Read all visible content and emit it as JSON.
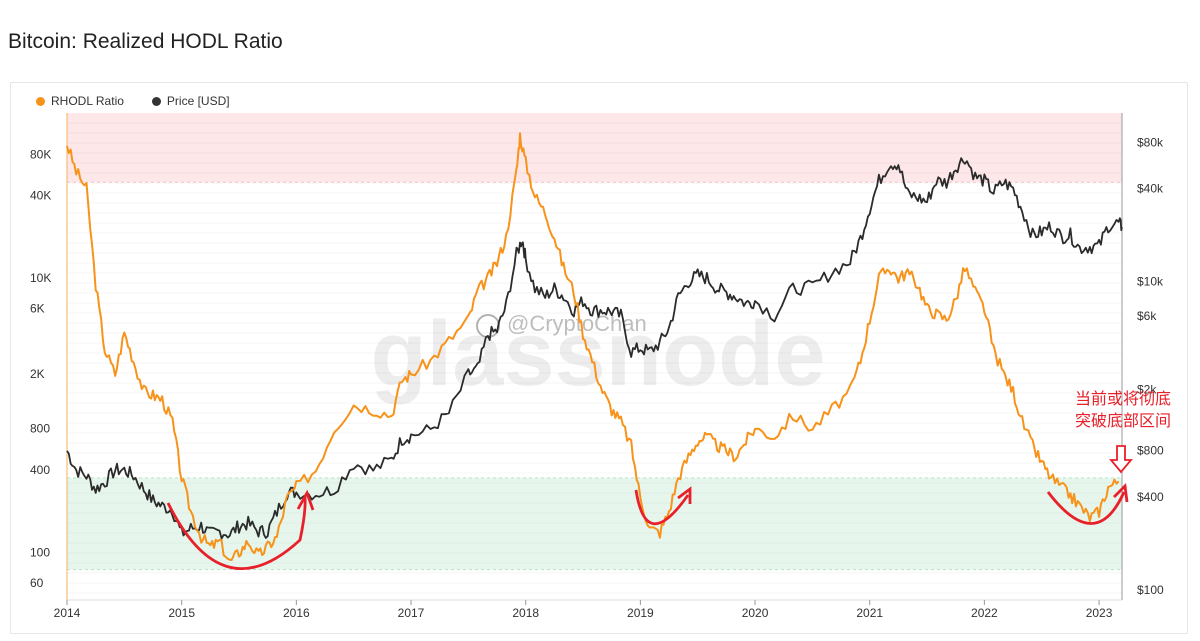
{
  "page": {
    "title": "Bitcoin: Realized HODL Ratio"
  },
  "legend": [
    {
      "label": "RHODL Ratio",
      "color": "#f7931a"
    },
    {
      "label": "Price [USD]",
      "color": "#333333"
    }
  ],
  "watermark": {
    "handle": "@CryptoChan",
    "brand": "glassnode"
  },
  "annotation": {
    "line1": "当前或将彻底",
    "line2": "突破底部区间"
  },
  "colors": {
    "rhodl": "#f7931a",
    "price": "#2b2b2b",
    "top_zone": "#fde7e9",
    "bottom_zone": "#e6f6ed",
    "annotation": "#e8202a"
  },
  "chart_data": {
    "type": "line",
    "title": "Bitcoin: Realized HODL Ratio",
    "x_ticks": [
      "2014",
      "2015",
      "2016",
      "2017",
      "2018",
      "2019",
      "2020",
      "2021",
      "2022",
      "2023"
    ],
    "y_left": {
      "scale": "log",
      "ticks": [
        "80K",
        "40K",
        "10K",
        "6K",
        "2K",
        "800",
        "400",
        "100",
        "60"
      ],
      "tick_values": [
        80000,
        40000,
        10000,
        6000,
        2000,
        800,
        400,
        100,
        60
      ]
    },
    "y_right": {
      "scale": "log",
      "ticks": [
        "$80k",
        "$40k",
        "$10k",
        "$6k",
        "$2k",
        "$800",
        "$400",
        "$100"
      ],
      "tick_values": [
        80000,
        40000,
        10000,
        6000,
        2000,
        800,
        400,
        100
      ]
    },
    "zones": [
      {
        "name": "top",
        "from": 50000,
        "to": 200000
      },
      {
        "name": "bottom",
        "from": 75,
        "to": 350
      }
    ],
    "series": [
      {
        "name": "RHODL Ratio",
        "axis": "left",
        "points": [
          [
            2014.0,
            95000
          ],
          [
            2014.08,
            60000
          ],
          [
            2014.17,
            45000
          ],
          [
            2014.25,
            9000
          ],
          [
            2014.33,
            3000
          ],
          [
            2014.42,
            2000
          ],
          [
            2014.5,
            4000
          ],
          [
            2014.58,
            2500
          ],
          [
            2014.67,
            1500
          ],
          [
            2014.75,
            1400
          ],
          [
            2014.83,
            1300
          ],
          [
            2014.92,
            900
          ],
          [
            2015.0,
            350
          ],
          [
            2015.08,
            200
          ],
          [
            2015.17,
            130
          ],
          [
            2015.25,
            110
          ],
          [
            2015.33,
            120
          ],
          [
            2015.42,
            85
          ],
          [
            2015.5,
            100
          ],
          [
            2015.58,
            120
          ],
          [
            2015.67,
            95
          ],
          [
            2015.75,
            110
          ],
          [
            2015.83,
            130
          ],
          [
            2015.92,
            250
          ],
          [
            2016.0,
            300
          ],
          [
            2016.17,
            400
          ],
          [
            2016.33,
            800
          ],
          [
            2016.5,
            1200
          ],
          [
            2016.67,
            1100
          ],
          [
            2016.83,
            1000
          ],
          [
            2016.92,
            1800
          ],
          [
            2017.0,
            2000
          ],
          [
            2017.17,
            2500
          ],
          [
            2017.33,
            3500
          ],
          [
            2017.5,
            5000
          ],
          [
            2017.58,
            8000
          ],
          [
            2017.67,
            10000
          ],
          [
            2017.75,
            13000
          ],
          [
            2017.83,
            20000
          ],
          [
            2017.92,
            60000
          ],
          [
            2017.95,
            110000
          ],
          [
            2018.0,
            70000
          ],
          [
            2018.08,
            40000
          ],
          [
            2018.17,
            30000
          ],
          [
            2018.25,
            20000
          ],
          [
            2018.33,
            12000
          ],
          [
            2018.42,
            8000
          ],
          [
            2018.5,
            4000
          ],
          [
            2018.58,
            2500
          ],
          [
            2018.67,
            1500
          ],
          [
            2018.75,
            1100
          ],
          [
            2018.83,
            900
          ],
          [
            2018.92,
            600
          ],
          [
            2019.0,
            250
          ],
          [
            2019.08,
            150
          ],
          [
            2019.17,
            140
          ],
          [
            2019.25,
            200
          ],
          [
            2019.33,
            350
          ],
          [
            2019.42,
            500
          ],
          [
            2019.5,
            650
          ],
          [
            2019.58,
            700
          ],
          [
            2019.67,
            600
          ],
          [
            2019.75,
            550
          ],
          [
            2019.83,
            500
          ],
          [
            2019.92,
            650
          ],
          [
            2020.0,
            800
          ],
          [
            2020.17,
            700
          ],
          [
            2020.33,
            1000
          ],
          [
            2020.5,
            800
          ],
          [
            2020.67,
            1100
          ],
          [
            2020.83,
            1500
          ],
          [
            2020.92,
            2500
          ],
          [
            2021.0,
            5000
          ],
          [
            2021.08,
            10000
          ],
          [
            2021.17,
            12000
          ],
          [
            2021.25,
            10000
          ],
          [
            2021.33,
            11000
          ],
          [
            2021.42,
            9000
          ],
          [
            2021.5,
            6000
          ],
          [
            2021.58,
            5500
          ],
          [
            2021.67,
            5000
          ],
          [
            2021.75,
            7000
          ],
          [
            2021.83,
            12000
          ],
          [
            2021.92,
            8000
          ],
          [
            2022.0,
            6000
          ],
          [
            2022.08,
            3000
          ],
          [
            2022.17,
            2000
          ],
          [
            2022.25,
            1500
          ],
          [
            2022.33,
            900
          ],
          [
            2022.42,
            600
          ],
          [
            2022.5,
            450
          ],
          [
            2022.58,
            350
          ],
          [
            2022.67,
            300
          ],
          [
            2022.75,
            260
          ],
          [
            2022.83,
            220
          ],
          [
            2022.92,
            180
          ],
          [
            2023.0,
            200
          ],
          [
            2023.08,
            300
          ],
          [
            2023.17,
            330
          ]
        ]
      },
      {
        "name": "Price [USD]",
        "axis": "right",
        "points": [
          [
            2014.0,
            800
          ],
          [
            2014.08,
            600
          ],
          [
            2014.17,
            550
          ],
          [
            2014.25,
            450
          ],
          [
            2014.33,
            500
          ],
          [
            2014.42,
            600
          ],
          [
            2014.5,
            600
          ],
          [
            2014.58,
            550
          ],
          [
            2014.67,
            450
          ],
          [
            2014.75,
            380
          ],
          [
            2014.83,
            350
          ],
          [
            2014.92,
            330
          ],
          [
            2015.0,
            230
          ],
          [
            2015.08,
            250
          ],
          [
            2015.17,
            260
          ],
          [
            2015.25,
            230
          ],
          [
            2015.33,
            240
          ],
          [
            2015.42,
            230
          ],
          [
            2015.5,
            260
          ],
          [
            2015.58,
            270
          ],
          [
            2015.67,
            240
          ],
          [
            2015.75,
            240
          ],
          [
            2015.83,
            320
          ],
          [
            2015.92,
            430
          ],
          [
            2016.0,
            430
          ],
          [
            2016.17,
            420
          ],
          [
            2016.33,
            450
          ],
          [
            2016.5,
            660
          ],
          [
            2016.67,
            600
          ],
          [
            2016.83,
            700
          ],
          [
            2016.92,
            950
          ],
          [
            2017.0,
            1000
          ],
          [
            2017.17,
            1100
          ],
          [
            2017.33,
            1400
          ],
          [
            2017.5,
            2500
          ],
          [
            2017.58,
            2700
          ],
          [
            2017.67,
            4500
          ],
          [
            2017.75,
            4800
          ],
          [
            2017.83,
            7000
          ],
          [
            2017.92,
            15000
          ],
          [
            2017.97,
            19000
          ],
          [
            2018.0,
            14000
          ],
          [
            2018.08,
            9000
          ],
          [
            2018.17,
            8000
          ],
          [
            2018.25,
            9000
          ],
          [
            2018.33,
            8000
          ],
          [
            2018.42,
            6500
          ],
          [
            2018.5,
            7500
          ],
          [
            2018.58,
            6500
          ],
          [
            2018.67,
            6500
          ],
          [
            2018.75,
            6400
          ],
          [
            2018.83,
            6000
          ],
          [
            2018.92,
            3500
          ],
          [
            2019.0,
            3700
          ],
          [
            2019.08,
            3500
          ],
          [
            2019.17,
            4000
          ],
          [
            2019.25,
            5000
          ],
          [
            2019.33,
            8000
          ],
          [
            2019.42,
            10000
          ],
          [
            2019.5,
            11000
          ],
          [
            2019.58,
            10500
          ],
          [
            2019.67,
            9000
          ],
          [
            2019.75,
            8500
          ],
          [
            2019.83,
            8000
          ],
          [
            2019.92,
            7200
          ],
          [
            2020.0,
            7500
          ],
          [
            2020.17,
            6000
          ],
          [
            2020.33,
            9000
          ],
          [
            2020.5,
            9200
          ],
          [
            2020.67,
            11500
          ],
          [
            2020.83,
            13500
          ],
          [
            2020.92,
            19000
          ],
          [
            2021.0,
            30000
          ],
          [
            2021.08,
            45000
          ],
          [
            2021.17,
            58000
          ],
          [
            2021.25,
            58000
          ],
          [
            2021.33,
            37000
          ],
          [
            2021.42,
            35000
          ],
          [
            2021.5,
            33000
          ],
          [
            2021.58,
            45000
          ],
          [
            2021.67,
            44000
          ],
          [
            2021.75,
            55000
          ],
          [
            2021.83,
            64000
          ],
          [
            2021.92,
            48000
          ],
          [
            2022.0,
            45000
          ],
          [
            2022.08,
            38000
          ],
          [
            2022.17,
            44000
          ],
          [
            2022.25,
            40000
          ],
          [
            2022.33,
            29000
          ],
          [
            2022.42,
            20000
          ],
          [
            2022.5,
            21000
          ],
          [
            2022.58,
            23000
          ],
          [
            2022.67,
            19500
          ],
          [
            2022.75,
            20000
          ],
          [
            2022.83,
            16500
          ],
          [
            2022.92,
            16800
          ],
          [
            2023.0,
            17000
          ],
          [
            2023.08,
            23000
          ],
          [
            2023.17,
            24000
          ],
          [
            2023.2,
            22500
          ]
        ]
      }
    ]
  }
}
